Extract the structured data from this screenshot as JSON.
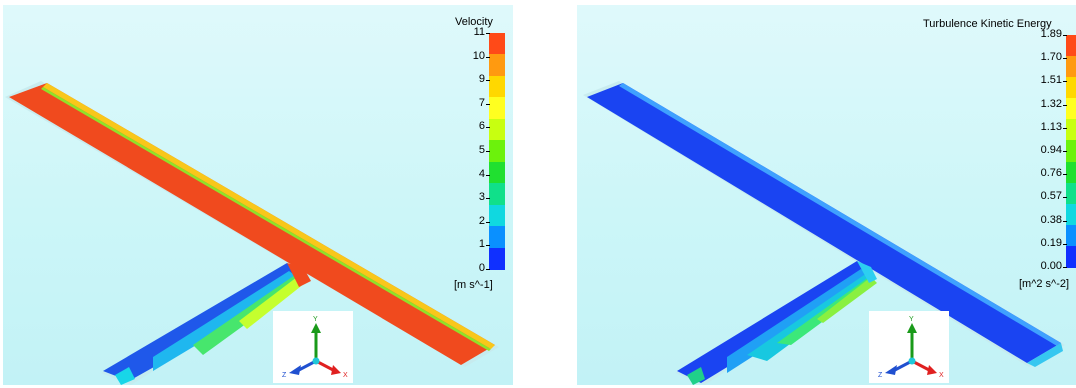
{
  "left_panel": {
    "legend": {
      "title": "Velocity",
      "units": "[m s^-1]",
      "ticks": [
        "11",
        "10",
        "9",
        "7",
        "6",
        "5",
        "4",
        "3",
        "2",
        "1",
        "0"
      ]
    }
  },
  "right_panel": {
    "legend": {
      "title": "Turbulence Kinetic Energy",
      "units": "[m^2 s^-2]",
      "ticks": [
        "1.89",
        "1.70",
        "1.51",
        "1.32",
        "1.13",
        "0.94",
        "0.76",
        "0.57",
        "0.38",
        "0.19",
        "0.00"
      ]
    }
  },
  "colormap": [
    "#ff4a18",
    "#ff9a10",
    "#ffd800",
    "#ffff20",
    "#c8ff10",
    "#6cf20c",
    "#20e030",
    "#10e08a",
    "#10d8e0",
    "#0a90ff",
    "#1030ff"
  ],
  "axis_triad": {
    "x": "X",
    "y": "Y",
    "z": "Z"
  }
}
